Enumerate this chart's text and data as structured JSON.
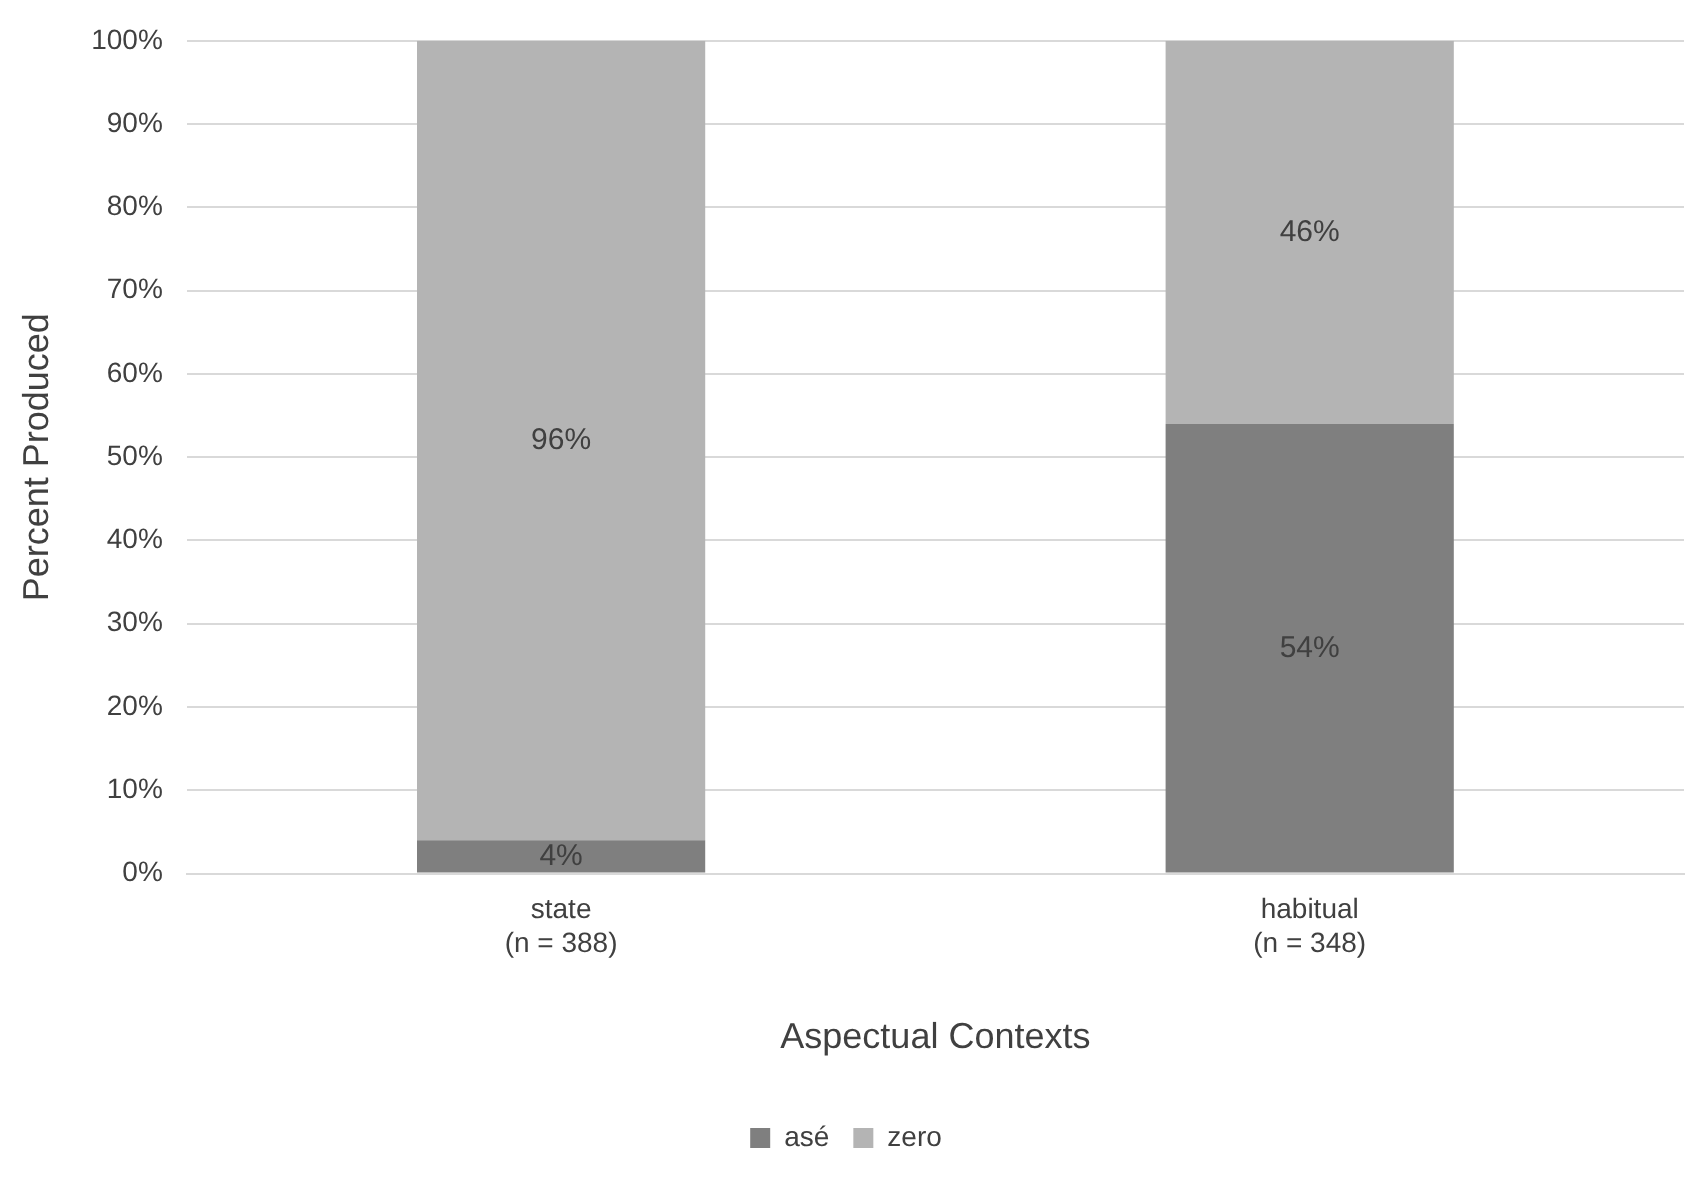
{
  "chart_data": {
    "type": "bar",
    "stacked": true,
    "xlabel": "Aspectual Contexts",
    "ylabel": "Percent Produced",
    "categories": [
      "state\n(n = 388)",
      "habitual\n(n = 348)"
    ],
    "series": [
      {
        "name": "asé",
        "color": "#7f7f7f",
        "values": [
          4,
          54
        ],
        "value_labels": [
          "4%",
          "54%"
        ]
      },
      {
        "name": "zero",
        "color": "#b4b4b4",
        "values": [
          96,
          46
        ],
        "value_labels": [
          "96%",
          "46%"
        ]
      }
    ],
    "ylim": [
      0,
      100
    ],
    "yticks": [
      {
        "value": 0,
        "label": "0%"
      },
      {
        "value": 10,
        "label": "10%"
      },
      {
        "value": 20,
        "label": "20%"
      },
      {
        "value": 30,
        "label": "30%"
      },
      {
        "value": 40,
        "label": "40%"
      },
      {
        "value": 50,
        "label": "50%"
      },
      {
        "value": 60,
        "label": "60%"
      },
      {
        "value": 70,
        "label": "70%"
      },
      {
        "value": 80,
        "label": "80%"
      },
      {
        "value": 90,
        "label": "90%"
      },
      {
        "value": 100,
        "label": "100%"
      }
    ],
    "grid": "y",
    "legend": "bottom"
  }
}
